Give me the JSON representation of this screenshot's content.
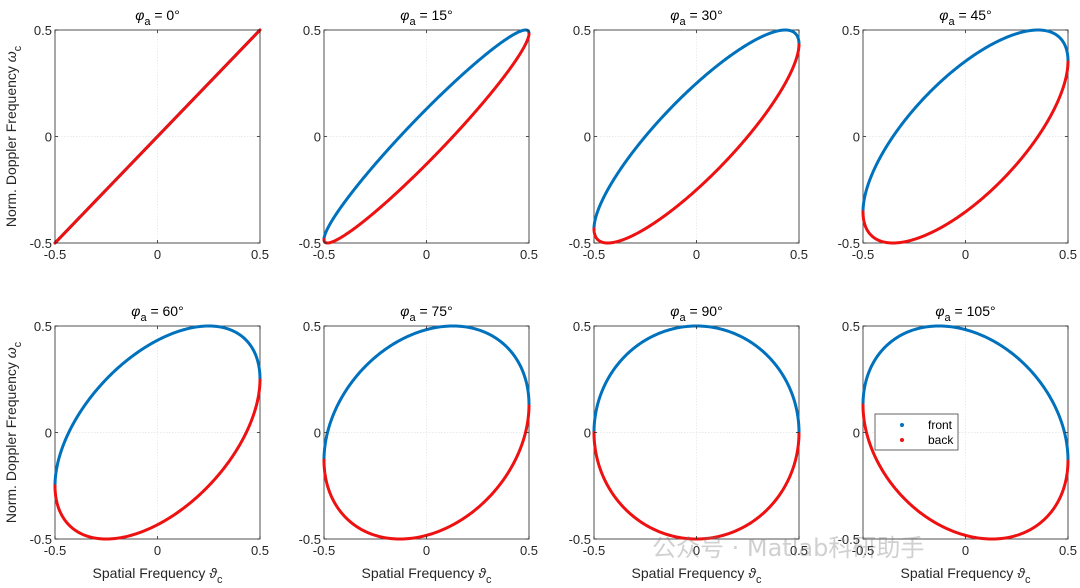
{
  "chart_data": [
    {
      "type": "scatter",
      "phi_a_deg": 0,
      "title_symbol": "φ",
      "title_sub": "a",
      "title_rest": " = 0°",
      "xlim": [
        -0.5,
        0.5
      ],
      "ylim": [
        -0.5,
        0.5
      ],
      "xticks": [
        "-0.5",
        "0",
        "0.5"
      ],
      "yticks": [
        "-0.5",
        "0",
        "0.5"
      ],
      "ylabel_text": "Norm. Doppler Frequency ",
      "ylabel_symbol": "ω",
      "ylabel_sub": "c",
      "xlabel_text": "",
      "xlabel_symbol": "",
      "xlabel_sub": ""
    },
    {
      "type": "scatter",
      "phi_a_deg": 15,
      "title_symbol": "φ",
      "title_sub": "a",
      "title_rest": " = 15°",
      "xlim": [
        -0.5,
        0.5
      ],
      "ylim": [
        -0.5,
        0.5
      ],
      "xticks": [
        "-0.5",
        "0",
        "0.5"
      ],
      "yticks": [
        "-0.5",
        "0",
        "0.5"
      ],
      "ylabel_text": "",
      "ylabel_symbol": "",
      "ylabel_sub": "",
      "xlabel_text": "",
      "xlabel_symbol": "",
      "xlabel_sub": ""
    },
    {
      "type": "scatter",
      "phi_a_deg": 30,
      "title_symbol": "φ",
      "title_sub": "a",
      "title_rest": " = 30°",
      "xlim": [
        -0.5,
        0.5
      ],
      "ylim": [
        -0.5,
        0.5
      ],
      "xticks": [
        "-0.5",
        "0",
        "0.5"
      ],
      "yticks": [
        "-0.5",
        "0",
        "0.5"
      ],
      "ylabel_text": "",
      "ylabel_symbol": "",
      "ylabel_sub": "",
      "xlabel_text": "",
      "xlabel_symbol": "",
      "xlabel_sub": ""
    },
    {
      "type": "scatter",
      "phi_a_deg": 45,
      "title_symbol": "φ",
      "title_sub": "a",
      "title_rest": " = 45°",
      "xlim": [
        -0.5,
        0.5
      ],
      "ylim": [
        -0.5,
        0.5
      ],
      "xticks": [
        "-0.5",
        "0",
        "0.5"
      ],
      "yticks": [
        "-0.5",
        "0",
        "0.5"
      ],
      "ylabel_text": "",
      "ylabel_symbol": "",
      "ylabel_sub": "",
      "xlabel_text": "",
      "xlabel_symbol": "",
      "xlabel_sub": ""
    },
    {
      "type": "scatter",
      "phi_a_deg": 60,
      "title_symbol": "φ",
      "title_sub": "a",
      "title_rest": " = 60°",
      "xlim": [
        -0.5,
        0.5
      ],
      "ylim": [
        -0.5,
        0.5
      ],
      "xticks": [
        "-0.5",
        "0",
        "0.5"
      ],
      "yticks": [
        "-0.5",
        "0",
        "0.5"
      ],
      "ylabel_text": "Norm. Doppler Frequency ",
      "ylabel_symbol": "ω",
      "ylabel_sub": "c",
      "xlabel_text": "Spatial Frequency ",
      "xlabel_symbol": "ϑ",
      "xlabel_sub": "c"
    },
    {
      "type": "scatter",
      "phi_a_deg": 75,
      "title_symbol": "φ",
      "title_sub": "a",
      "title_rest": " = 75°",
      "xlim": [
        -0.5,
        0.5
      ],
      "ylim": [
        -0.5,
        0.5
      ],
      "xticks": [
        "-0.5",
        "0",
        "0.5"
      ],
      "yticks": [
        "-0.5",
        "0",
        "0.5"
      ],
      "ylabel_text": "",
      "ylabel_symbol": "",
      "ylabel_sub": "",
      "xlabel_text": "Spatial Frequency ",
      "xlabel_symbol": "ϑ",
      "xlabel_sub": "c"
    },
    {
      "type": "scatter",
      "phi_a_deg": 90,
      "title_symbol": "φ",
      "title_sub": "a",
      "title_rest": " = 90°",
      "xlim": [
        -0.5,
        0.5
      ],
      "ylim": [
        -0.5,
        0.5
      ],
      "xticks": [
        "-0.5",
        "0",
        "0.5"
      ],
      "yticks": [
        "-0.5",
        "0",
        "0.5"
      ],
      "ylabel_text": "",
      "ylabel_symbol": "",
      "ylabel_sub": "",
      "xlabel_text": "Spatial Frequency ",
      "xlabel_symbol": "ϑ",
      "xlabel_sub": "c"
    },
    {
      "type": "scatter",
      "phi_a_deg": 105,
      "title_symbol": "φ",
      "title_sub": "a",
      "title_rest": " = 105°",
      "xlim": [
        -0.5,
        0.5
      ],
      "ylim": [
        -0.5,
        0.5
      ],
      "xticks": [
        "-0.5",
        "0",
        "0.5"
      ],
      "yticks": [
        "-0.5",
        "0",
        "0.5"
      ],
      "ylabel_text": "",
      "ylabel_symbol": "",
      "ylabel_sub": "",
      "xlabel_text": "Spatial Frequency ",
      "xlabel_symbol": "ϑ",
      "xlabel_sub": "c",
      "legend": {
        "placement": "center-left",
        "entries": [
          {
            "label": "front",
            "color": "#0072BD"
          },
          {
            "label": "back",
            "color": "#EE1111"
          }
        ]
      }
    }
  ],
  "series_colors": {
    "front": "#0072BD",
    "back": "#EE1111"
  },
  "watermark": "公众号 · Matlab科研助手"
}
